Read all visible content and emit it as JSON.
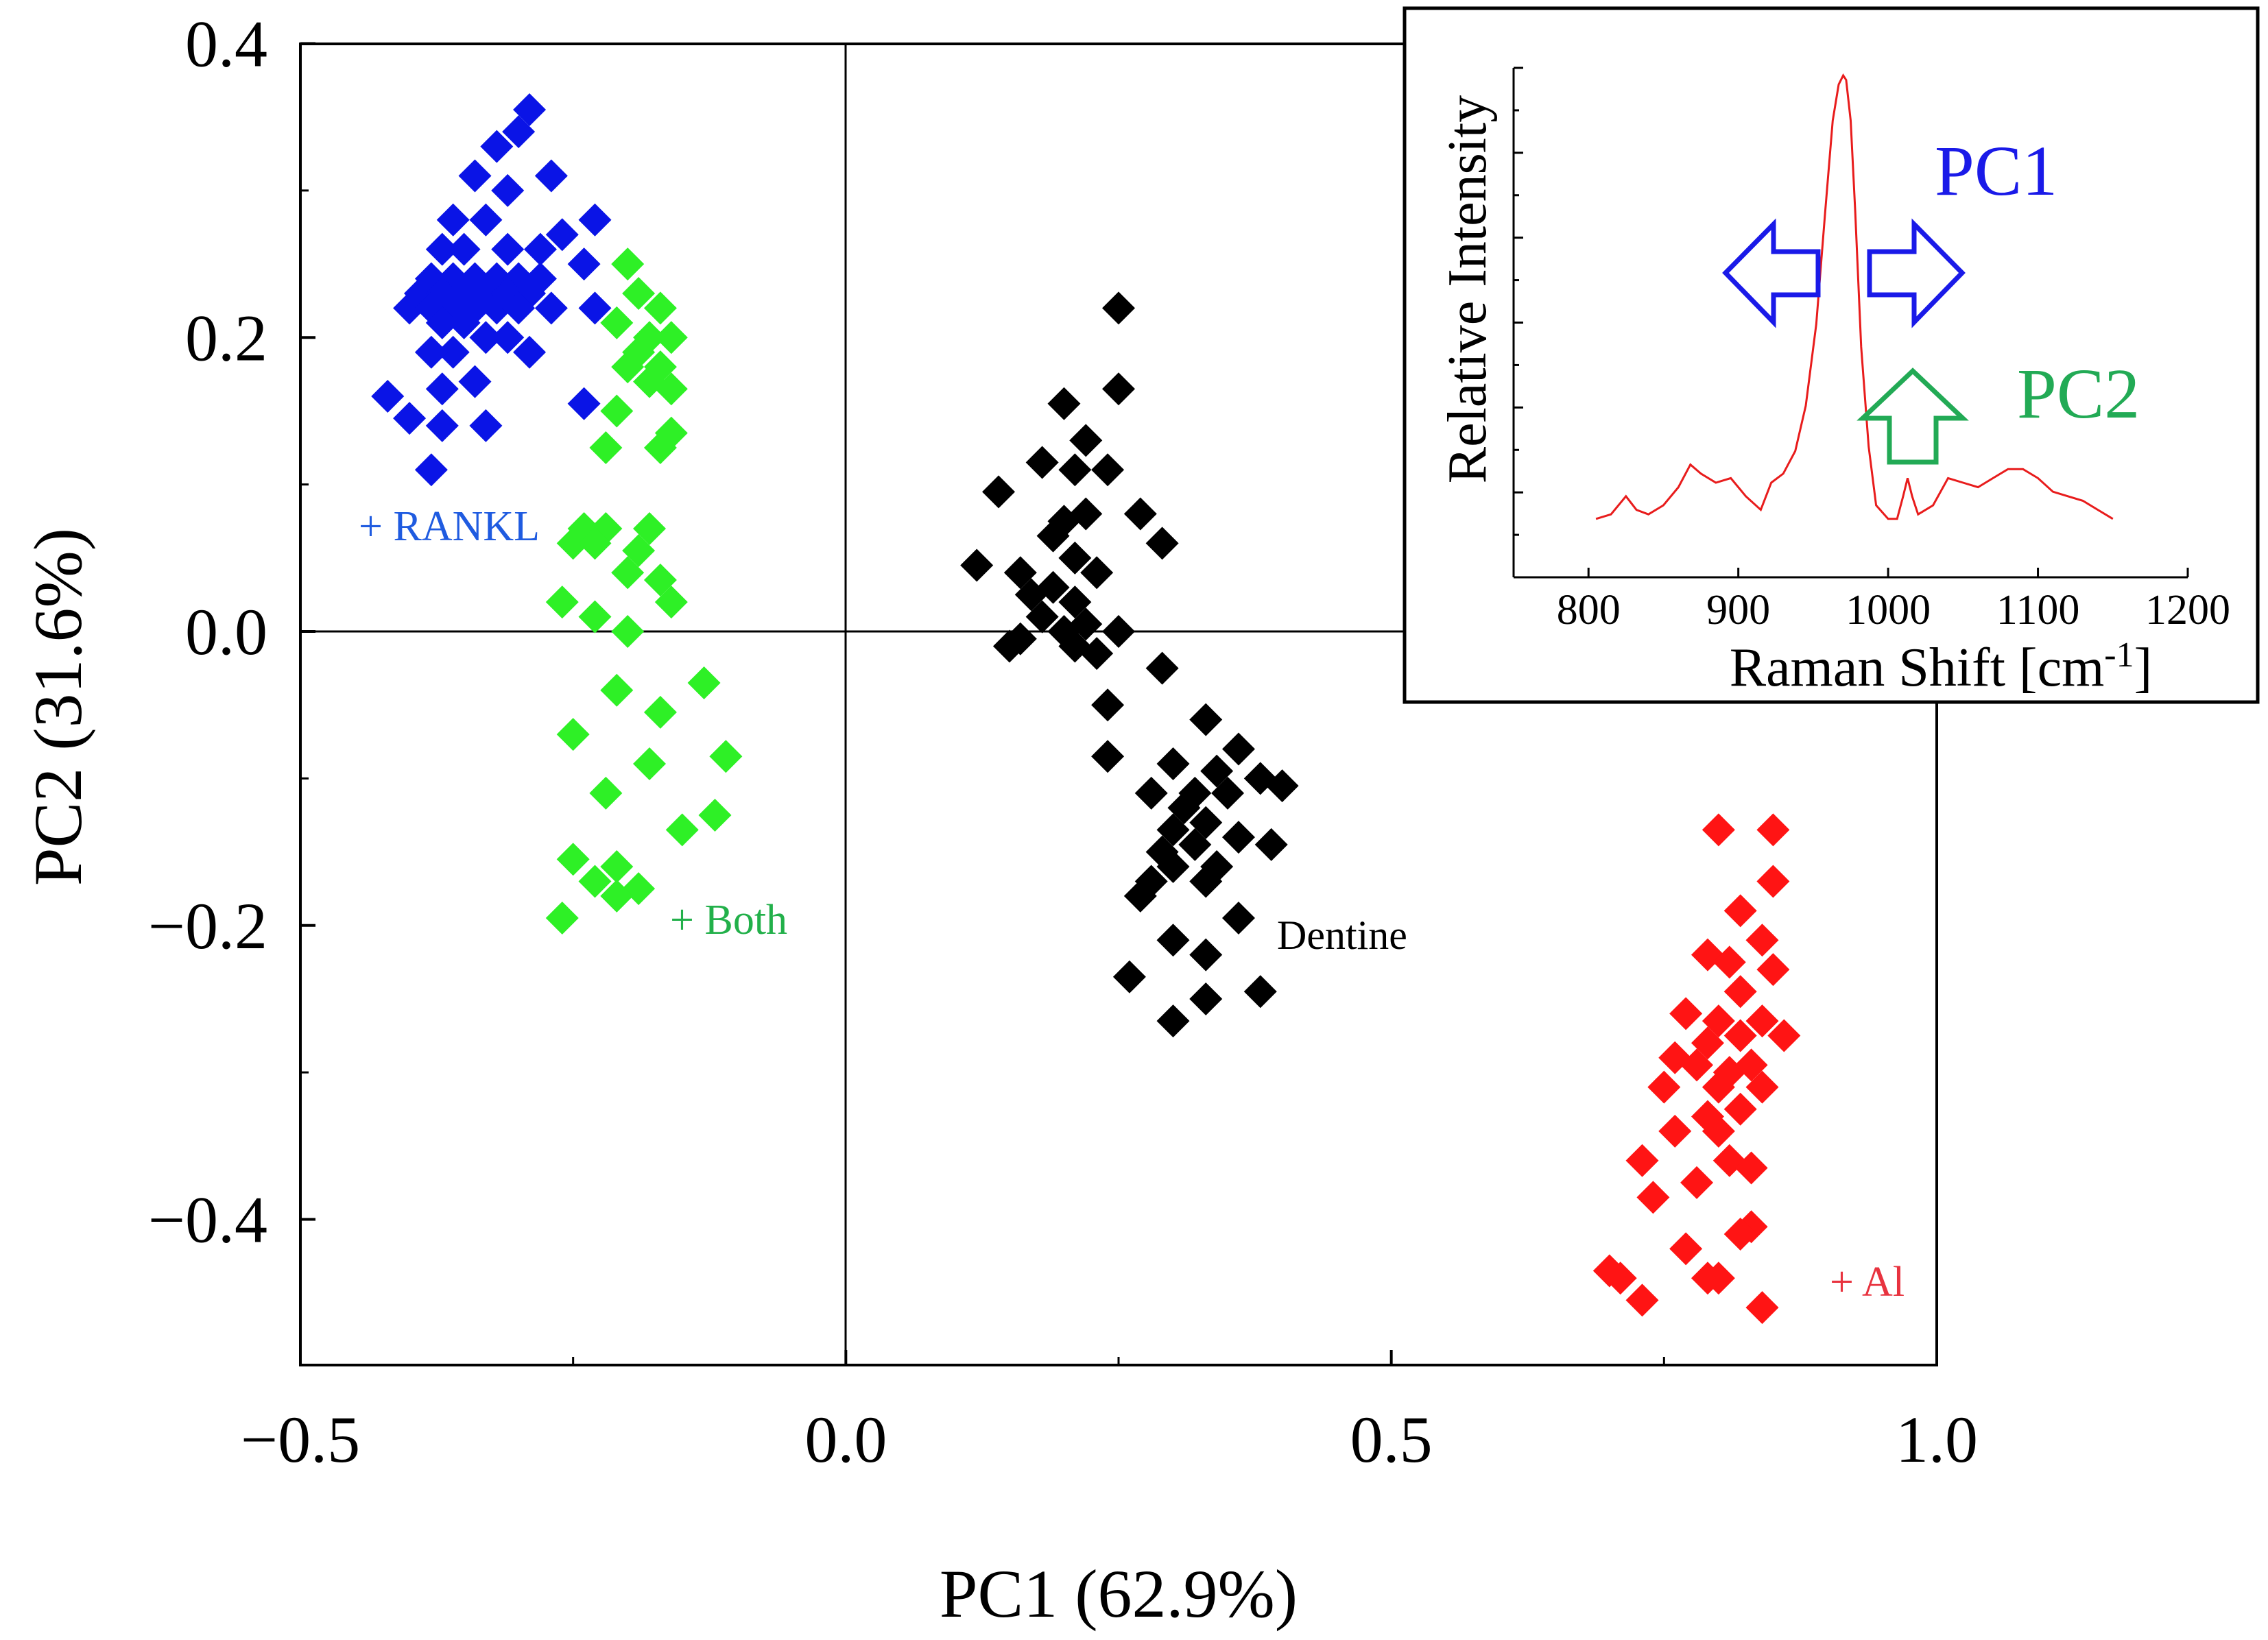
{
  "chart_data": [
    {
      "type": "scatter",
      "title": "",
      "xlabel": "PC1 (62.9%)",
      "ylabel": "PC2 (31.6%)",
      "xlim": [
        -0.5,
        1.0
      ],
      "ylim": [
        -0.5,
        0.4
      ],
      "x_ticks": [
        -0.5,
        0.0,
        0.5,
        1.0
      ],
      "x_tick_labels": [
        "−0.5",
        "0.0",
        "0.5",
        "1.0"
      ],
      "y_ticks": [
        0.4,
        0.2,
        0.0,
        -0.2,
        -0.4
      ],
      "y_tick_labels": [
        "0.4",
        "0.2",
        "0.0",
        "−0.2",
        "−0.4"
      ],
      "marker": "diamond",
      "series": [
        {
          "name": "+ RANKL",
          "color": "#0a14e6",
          "label_color": "#1f5be0",
          "points": [
            [
              -0.29,
              0.355
            ],
            [
              -0.3,
              0.34
            ],
            [
              -0.32,
              0.33
            ],
            [
              -0.34,
              0.31
            ],
            [
              -0.27,
              0.31
            ],
            [
              -0.31,
              0.3
            ],
            [
              -0.36,
              0.28
            ],
            [
              -0.33,
              0.28
            ],
            [
              -0.23,
              0.28
            ],
            [
              -0.26,
              0.27
            ],
            [
              -0.37,
              0.26
            ],
            [
              -0.35,
              0.26
            ],
            [
              -0.31,
              0.26
            ],
            [
              -0.28,
              0.26
            ],
            [
              -0.24,
              0.25
            ],
            [
              -0.38,
              0.24
            ],
            [
              -0.36,
              0.24
            ],
            [
              -0.34,
              0.24
            ],
            [
              -0.32,
              0.24
            ],
            [
              -0.3,
              0.24
            ],
            [
              -0.28,
              0.24
            ],
            [
              -0.39,
              0.23
            ],
            [
              -0.37,
              0.23
            ],
            [
              -0.35,
              0.23
            ],
            [
              -0.33,
              0.23
            ],
            [
              -0.31,
              0.23
            ],
            [
              -0.29,
              0.23
            ],
            [
              -0.4,
              0.22
            ],
            [
              -0.38,
              0.22
            ],
            [
              -0.36,
              0.22
            ],
            [
              -0.34,
              0.22
            ],
            [
              -0.32,
              0.22
            ],
            [
              -0.3,
              0.22
            ],
            [
              -0.27,
              0.22
            ],
            [
              -0.23,
              0.22
            ],
            [
              -0.37,
              0.21
            ],
            [
              -0.35,
              0.21
            ],
            [
              -0.33,
              0.2
            ],
            [
              -0.31,
              0.2
            ],
            [
              -0.36,
              0.19
            ],
            [
              -0.38,
              0.19
            ],
            [
              -0.29,
              0.19
            ],
            [
              -0.34,
              0.17
            ],
            [
              -0.37,
              0.165
            ],
            [
              -0.42,
              0.16
            ],
            [
              -0.24,
              0.155
            ],
            [
              -0.4,
              0.145
            ],
            [
              -0.37,
              0.14
            ],
            [
              -0.33,
              0.14
            ],
            [
              -0.38,
              0.11
            ]
          ]
        },
        {
          "name": "+ Both",
          "color": "#2ef026",
          "label_color": "#22b04a",
          "points": [
            [
              -0.2,
              0.25
            ],
            [
              -0.19,
              0.23
            ],
            [
              -0.17,
              0.22
            ],
            [
              -0.21,
              0.21
            ],
            [
              -0.18,
              0.2
            ],
            [
              -0.16,
              0.2
            ],
            [
              -0.19,
              0.19
            ],
            [
              -0.17,
              0.18
            ],
            [
              -0.2,
              0.18
            ],
            [
              -0.18,
              0.17
            ],
            [
              -0.16,
              0.165
            ],
            [
              -0.21,
              0.15
            ],
            [
              -0.16,
              0.135
            ],
            [
              -0.17,
              0.125
            ],
            [
              -0.22,
              0.125
            ],
            [
              -0.24,
              0.07
            ],
            [
              -0.22,
              0.07
            ],
            [
              -0.18,
              0.07
            ],
            [
              -0.25,
              0.06
            ],
            [
              -0.23,
              0.06
            ],
            [
              -0.19,
              0.055
            ],
            [
              -0.2,
              0.04
            ],
            [
              -0.17,
              0.035
            ],
            [
              -0.16,
              0.02
            ],
            [
              -0.26,
              0.02
            ],
            [
              -0.23,
              0.01
            ],
            [
              -0.2,
              0.0
            ],
            [
              -0.13,
              -0.035
            ],
            [
              -0.21,
              -0.04
            ],
            [
              -0.17,
              -0.055
            ],
            [
              -0.25,
              -0.07
            ],
            [
              -0.11,
              -0.085
            ],
            [
              -0.18,
              -0.09
            ],
            [
              -0.22,
              -0.11
            ],
            [
              -0.12,
              -0.125
            ],
            [
              -0.15,
              -0.135
            ],
            [
              -0.25,
              -0.155
            ],
            [
              -0.21,
              -0.16
            ],
            [
              -0.23,
              -0.17
            ],
            [
              -0.19,
              -0.175
            ],
            [
              -0.21,
              -0.18
            ],
            [
              -0.26,
              -0.195
            ]
          ]
        },
        {
          "name": "Dentine",
          "color": "#000000",
          "label_color": "#000000",
          "points": [
            [
              0.25,
              0.22
            ],
            [
              0.25,
              0.165
            ],
            [
              0.2,
              0.155
            ],
            [
              0.22,
              0.13
            ],
            [
              0.18,
              0.115
            ],
            [
              0.21,
              0.11
            ],
            [
              0.24,
              0.11
            ],
            [
              0.14,
              0.095
            ],
            [
              0.2,
              0.075
            ],
            [
              0.22,
              0.08
            ],
            [
              0.27,
              0.08
            ],
            [
              0.29,
              0.06
            ],
            [
              0.19,
              0.065
            ],
            [
              0.21,
              0.05
            ],
            [
              0.12,
              0.045
            ],
            [
              0.16,
              0.04
            ],
            [
              0.23,
              0.04
            ],
            [
              0.17,
              0.025
            ],
            [
              0.19,
              0.03
            ],
            [
              0.21,
              0.02
            ],
            [
              0.18,
              0.01
            ],
            [
              0.2,
              0.0
            ],
            [
              0.22,
              0.005
            ],
            [
              0.25,
              0.0
            ],
            [
              0.16,
              -0.005
            ],
            [
              0.15,
              -0.01
            ],
            [
              0.21,
              -0.01
            ],
            [
              0.23,
              -0.015
            ],
            [
              0.29,
              -0.025
            ],
            [
              0.24,
              -0.05
            ],
            [
              0.33,
              -0.06
            ],
            [
              0.36,
              -0.08
            ],
            [
              0.24,
              -0.085
            ],
            [
              0.3,
              -0.09
            ],
            [
              0.34,
              -0.095
            ],
            [
              0.38,
              -0.1
            ],
            [
              0.4,
              -0.105
            ],
            [
              0.32,
              -0.11
            ],
            [
              0.35,
              -0.11
            ],
            [
              0.28,
              -0.11
            ],
            [
              0.31,
              -0.12
            ],
            [
              0.33,
              -0.13
            ],
            [
              0.3,
              -0.135
            ],
            [
              0.36,
              -0.14
            ],
            [
              0.39,
              -0.145
            ],
            [
              0.32,
              -0.145
            ],
            [
              0.29,
              -0.15
            ],
            [
              0.34,
              -0.16
            ],
            [
              0.3,
              -0.16
            ],
            [
              0.28,
              -0.17
            ],
            [
              0.33,
              -0.17
            ],
            [
              0.27,
              -0.18
            ],
            [
              0.36,
              -0.195
            ],
            [
              0.3,
              -0.21
            ],
            [
              0.33,
              -0.22
            ],
            [
              0.26,
              -0.235
            ],
            [
              0.38,
              -0.245
            ],
            [
              0.33,
              -0.25
            ],
            [
              0.3,
              -0.265
            ]
          ]
        },
        {
          "name": "+ Al",
          "color": "#ff1414",
          "label_color": "#e8333f",
          "points": [
            [
              0.8,
              -0.135
            ],
            [
              0.85,
              -0.135
            ],
            [
              0.85,
              -0.17
            ],
            [
              0.82,
              -0.19
            ],
            [
              0.84,
              -0.21
            ],
            [
              0.79,
              -0.22
            ],
            [
              0.81,
              -0.225
            ],
            [
              0.85,
              -0.23
            ],
            [
              0.82,
              -0.245
            ],
            [
              0.77,
              -0.26
            ],
            [
              0.8,
              -0.265
            ],
            [
              0.84,
              -0.265
            ],
            [
              0.79,
              -0.28
            ],
            [
              0.82,
              -0.275
            ],
            [
              0.86,
              -0.275
            ],
            [
              0.76,
              -0.29
            ],
            [
              0.78,
              -0.295
            ],
            [
              0.81,
              -0.3
            ],
            [
              0.83,
              -0.295
            ],
            [
              0.8,
              -0.31
            ],
            [
              0.75,
              -0.31
            ],
            [
              0.84,
              -0.31
            ],
            [
              0.82,
              -0.325
            ],
            [
              0.79,
              -0.33
            ],
            [
              0.8,
              -0.34
            ],
            [
              0.76,
              -0.34
            ],
            [
              0.81,
              -0.36
            ],
            [
              0.73,
              -0.36
            ],
            [
              0.83,
              -0.365
            ],
            [
              0.78,
              -0.375
            ],
            [
              0.74,
              -0.385
            ],
            [
              0.83,
              -0.405
            ],
            [
              0.82,
              -0.41
            ],
            [
              0.77,
              -0.42
            ],
            [
              0.7,
              -0.435
            ],
            [
              0.71,
              -0.44
            ],
            [
              0.79,
              -0.44
            ],
            [
              0.8,
              -0.44
            ],
            [
              0.73,
              -0.455
            ],
            [
              0.84,
              -0.46
            ]
          ]
        }
      ]
    },
    {
      "type": "line",
      "title": "",
      "xlabel": "Raman Shift [cm",
      "xlabel_superscript": "-1",
      "xlabel_suffix": "]",
      "ylabel": "Relative Intensity",
      "xlim": [
        750,
        1200
      ],
      "ylim": [
        0,
        1.0
      ],
      "x_ticks": [
        800,
        900,
        1000,
        1100,
        1200
      ],
      "x_tick_labels": [
        "800",
        "900",
        "1000",
        "1100",
        "1200"
      ],
      "series": [
        {
          "name": "Raman spectrum",
          "color": "#e81c1c",
          "x": [
            805,
            815,
            825,
            832,
            840,
            850,
            860,
            868,
            875,
            885,
            895,
            905,
            915,
            922,
            930,
            938,
            945,
            952,
            958,
            963,
            967,
            970,
            972,
            975,
            978,
            982,
            987,
            992,
            1000,
            1006,
            1010,
            1013,
            1016,
            1020,
            1030,
            1040,
            1050,
            1060,
            1070,
            1080,
            1090,
            1100,
            1110,
            1120,
            1130,
            1140,
            1150
          ],
          "y": [
            0.02,
            0.03,
            0.07,
            0.04,
            0.03,
            0.05,
            0.09,
            0.14,
            0.12,
            0.1,
            0.11,
            0.07,
            0.04,
            0.1,
            0.12,
            0.17,
            0.27,
            0.45,
            0.7,
            0.9,
            0.98,
            1.0,
            0.99,
            0.9,
            0.7,
            0.4,
            0.18,
            0.05,
            0.02,
            0.02,
            0.07,
            0.11,
            0.07,
            0.03,
            0.05,
            0.11,
            0.1,
            0.09,
            0.11,
            0.13,
            0.13,
            0.11,
            0.08,
            0.07,
            0.06,
            0.04,
            0.02
          ]
        }
      ],
      "annotations": [
        {
          "text": "PC1",
          "color": "#1a1ae8"
        },
        {
          "text": "PC2",
          "color": "#22aa55"
        }
      ]
    }
  ]
}
